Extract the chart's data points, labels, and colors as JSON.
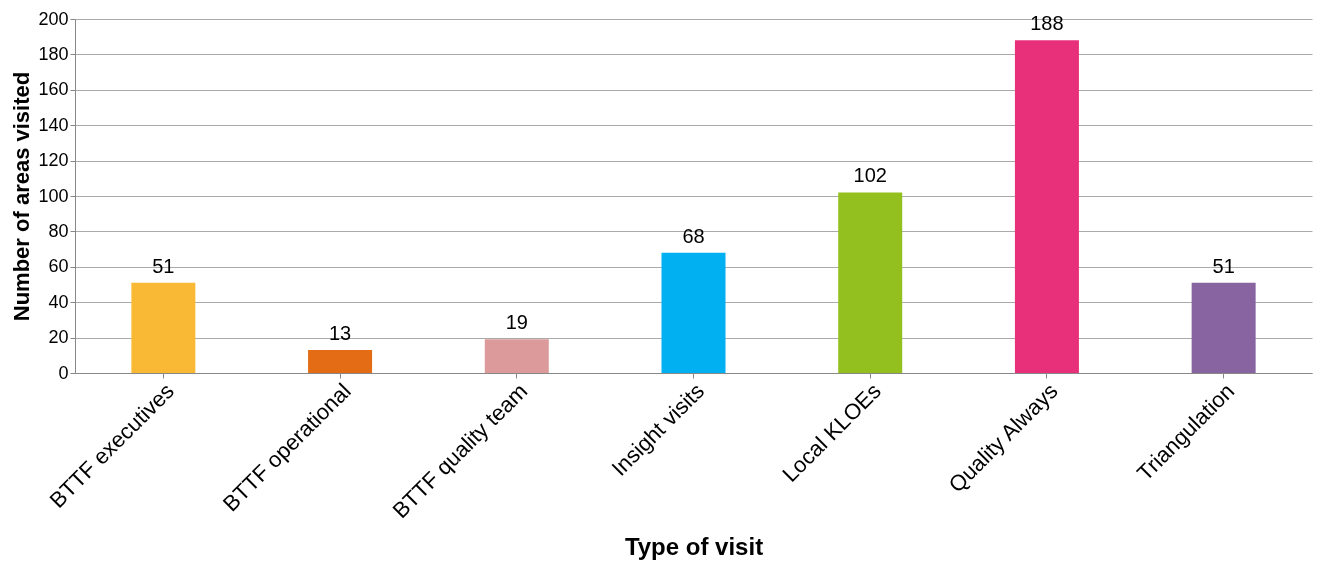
{
  "chart_data": {
    "type": "bar",
    "xlabel": "Type of visit",
    "ylabel": "Number of areas visited",
    "categories": [
      "BTTF executives",
      "BTTF operational",
      "BTTF quality team",
      "Insight visits",
      "Local KLOEs",
      "Quality Always",
      "Triangulation"
    ],
    "values": [
      51,
      13,
      19,
      68,
      102,
      188,
      51
    ],
    "colors": [
      "#f9b935",
      "#e36c14",
      "#dd9a9a",
      "#00b0f0",
      "#93c01f",
      "#e8307a",
      "#8864a1"
    ],
    "ylim": [
      0,
      200
    ],
    "yticks": [
      0,
      20,
      40,
      60,
      80,
      100,
      120,
      140,
      160,
      180,
      200
    ],
    "grid": "y",
    "data_labels": true
  }
}
